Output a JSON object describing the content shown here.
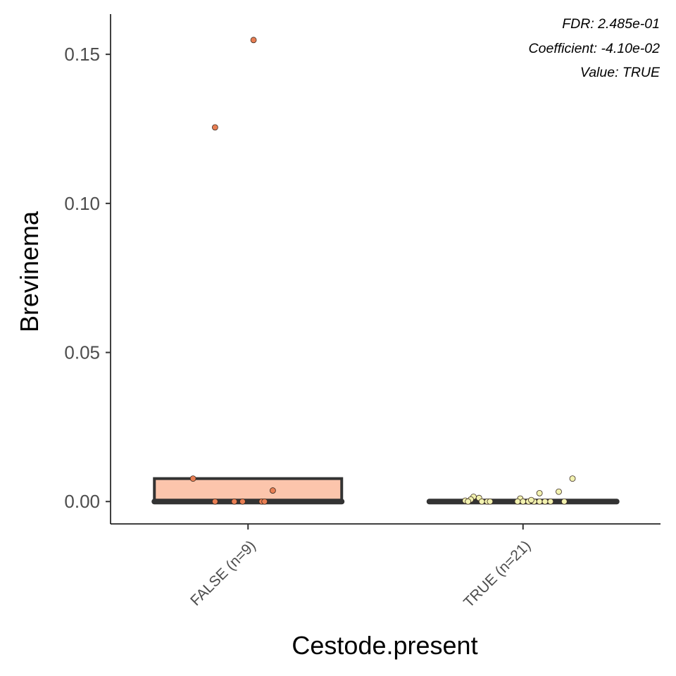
{
  "chart_data": {
    "type": "box",
    "xlabel": "Cestode.present",
    "ylabel": "Brevinema",
    "categories": [
      "FALSE (n=9)",
      "TRUE (n=21)"
    ],
    "ylim": [
      -0.0075,
      0.1635
    ],
    "yticks": [
      0.0,
      0.05,
      0.1,
      0.15
    ],
    "ytick_labels": [
      "0.00",
      "0.05",
      "0.10",
      "0.15"
    ],
    "grid": false,
    "annotations": [
      "FDR: 2.485e-01",
      "Coefficient: -4.10e-02",
      "Value: TRUE"
    ],
    "boxes": [
      {
        "category": "FALSE (n=9)",
        "q1": 0.0,
        "median": 0.0,
        "q3": 0.0077,
        "fill": "#fcc5ac",
        "points": [
          {
            "x_jitter": -0.2,
            "y": 0.0077
          },
          {
            "x_jitter": -0.12,
            "y": 0.1255
          },
          {
            "x_jitter": 0.02,
            "y": 0.1548
          },
          {
            "x_jitter": 0.09,
            "y": 0.0037
          },
          {
            "x_jitter": -0.12,
            "y": 0.0
          },
          {
            "x_jitter": -0.05,
            "y": 0.0
          },
          {
            "x_jitter": -0.02,
            "y": 0.0
          },
          {
            "x_jitter": 0.05,
            "y": 0.0
          },
          {
            "x_jitter": 0.06,
            "y": 0.0
          }
        ],
        "point_color": "#e87e53"
      },
      {
        "category": "TRUE (n=21)",
        "q1": 0.0,
        "median": 0.0,
        "q3": 0.0,
        "fill": "#ffffcc",
        "points": [
          {
            "x_jitter": 0.18,
            "y": 0.0077
          },
          {
            "x_jitter": 0.13,
            "y": 0.0033
          },
          {
            "x_jitter": 0.06,
            "y": 0.0028
          },
          {
            "x_jitter": -0.18,
            "y": 0.0016
          },
          {
            "x_jitter": -0.16,
            "y": 0.0012
          },
          {
            "x_jitter": -0.19,
            "y": 0.0007
          },
          {
            "x_jitter": -0.21,
            "y": 0.0003
          },
          {
            "x_jitter": -0.13,
            "y": 0.0
          },
          {
            "x_jitter": -0.12,
            "y": 0.0
          },
          {
            "x_jitter": -0.2,
            "y": 0.0
          },
          {
            "x_jitter": -0.15,
            "y": 0.0
          },
          {
            "x_jitter": -0.01,
            "y": 0.001
          },
          {
            "x_jitter": 0.0,
            "y": 0.0
          },
          {
            "x_jitter": -0.02,
            "y": 0.0
          },
          {
            "x_jitter": 0.02,
            "y": 0.0
          },
          {
            "x_jitter": 0.04,
            "y": 0.0
          },
          {
            "x_jitter": 0.06,
            "y": 0.0
          },
          {
            "x_jitter": 0.08,
            "y": 0.0
          },
          {
            "x_jitter": 0.1,
            "y": 0.0
          },
          {
            "x_jitter": 0.15,
            "y": 0.0
          },
          {
            "x_jitter": 0.03,
            "y": 0.0005
          }
        ],
        "point_color": "#f2f2b0"
      }
    ]
  }
}
